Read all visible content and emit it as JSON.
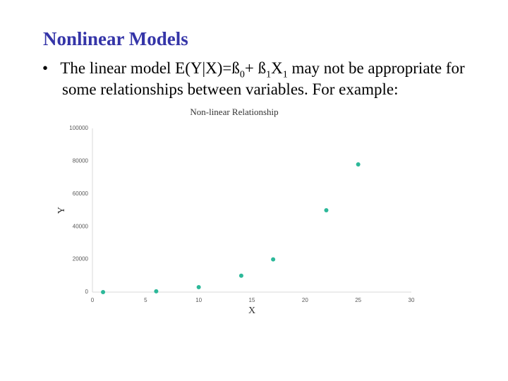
{
  "slide_title": "Nonlinear Models",
  "bullet": [
    "The linear model E(Y|X)=ß",
    "0",
    "+ ß",
    "1",
    "X",
    "1",
    " may not be appropriate for some relationships between variables.  For example:"
  ],
  "chart_data": {
    "type": "scatter",
    "title": "Non-linear Relationship",
    "x_label": "X",
    "y_label": "Y",
    "x": [
      1,
      6,
      10,
      14,
      17,
      22,
      25
    ],
    "values": [
      0,
      500,
      3000,
      10000,
      20000,
      50000,
      78000
    ],
    "color": "#2cb899",
    "xlim": [
      0,
      30
    ],
    "xticks": [
      0,
      5,
      10,
      15,
      20,
      25,
      30
    ],
    "ylim": [
      0,
      100000
    ],
    "yticks": [
      0,
      20000,
      40000,
      60000,
      80000,
      100000
    ],
    "grid": false
  }
}
